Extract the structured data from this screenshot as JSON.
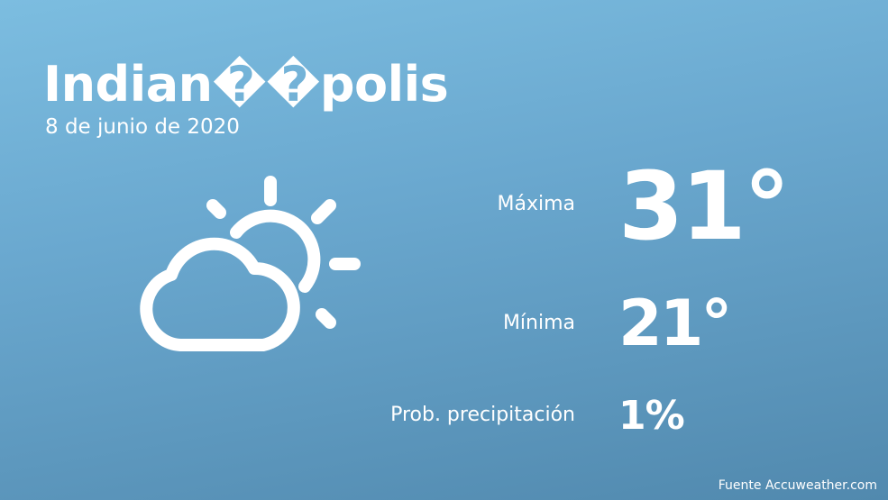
{
  "header": {
    "title": "Indian��polis",
    "date": "8 de junio de 2020"
  },
  "rows": [
    {
      "label": "Máxima",
      "value": "31°"
    },
    {
      "label": "Mínima",
      "value": "21°"
    },
    {
      "label": "Prob. precipitación",
      "value": "1%"
    }
  ],
  "footer": {
    "source": "Fuente Accuweather.com"
  }
}
